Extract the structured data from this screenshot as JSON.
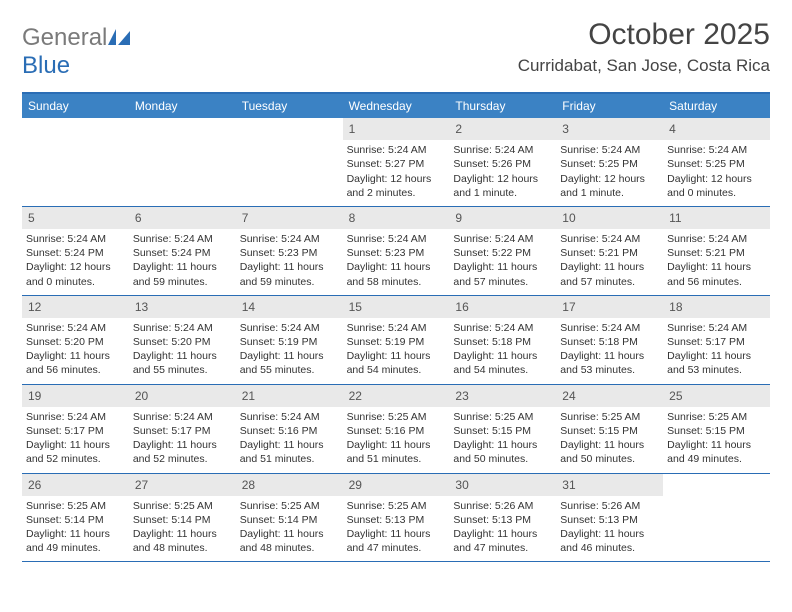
{
  "logo": {
    "text1": "General",
    "text2": "Blue"
  },
  "title": "October 2025",
  "location": "Curridabat, San Jose, Costa Rica",
  "colors": {
    "headerBar": "#3b82c4",
    "borderBlue": "#2a6db5",
    "dayNumBg": "#e9e9e9",
    "text": "#333333"
  },
  "dayNames": [
    "Sunday",
    "Monday",
    "Tuesday",
    "Wednesday",
    "Thursday",
    "Friday",
    "Saturday"
  ],
  "weeks": [
    [
      null,
      null,
      null,
      {
        "n": "1",
        "sr": "Sunrise: 5:24 AM",
        "ss": "Sunset: 5:27 PM",
        "dl": "Daylight: 12 hours and 2 minutes."
      },
      {
        "n": "2",
        "sr": "Sunrise: 5:24 AM",
        "ss": "Sunset: 5:26 PM",
        "dl": "Daylight: 12 hours and 1 minute."
      },
      {
        "n": "3",
        "sr": "Sunrise: 5:24 AM",
        "ss": "Sunset: 5:25 PM",
        "dl": "Daylight: 12 hours and 1 minute."
      },
      {
        "n": "4",
        "sr": "Sunrise: 5:24 AM",
        "ss": "Sunset: 5:25 PM",
        "dl": "Daylight: 12 hours and 0 minutes."
      }
    ],
    [
      {
        "n": "5",
        "sr": "Sunrise: 5:24 AM",
        "ss": "Sunset: 5:24 PM",
        "dl": "Daylight: 12 hours and 0 minutes."
      },
      {
        "n": "6",
        "sr": "Sunrise: 5:24 AM",
        "ss": "Sunset: 5:24 PM",
        "dl": "Daylight: 11 hours and 59 minutes."
      },
      {
        "n": "7",
        "sr": "Sunrise: 5:24 AM",
        "ss": "Sunset: 5:23 PM",
        "dl": "Daylight: 11 hours and 59 minutes."
      },
      {
        "n": "8",
        "sr": "Sunrise: 5:24 AM",
        "ss": "Sunset: 5:23 PM",
        "dl": "Daylight: 11 hours and 58 minutes."
      },
      {
        "n": "9",
        "sr": "Sunrise: 5:24 AM",
        "ss": "Sunset: 5:22 PM",
        "dl": "Daylight: 11 hours and 57 minutes."
      },
      {
        "n": "10",
        "sr": "Sunrise: 5:24 AM",
        "ss": "Sunset: 5:21 PM",
        "dl": "Daylight: 11 hours and 57 minutes."
      },
      {
        "n": "11",
        "sr": "Sunrise: 5:24 AM",
        "ss": "Sunset: 5:21 PM",
        "dl": "Daylight: 11 hours and 56 minutes."
      }
    ],
    [
      {
        "n": "12",
        "sr": "Sunrise: 5:24 AM",
        "ss": "Sunset: 5:20 PM",
        "dl": "Daylight: 11 hours and 56 minutes."
      },
      {
        "n": "13",
        "sr": "Sunrise: 5:24 AM",
        "ss": "Sunset: 5:20 PM",
        "dl": "Daylight: 11 hours and 55 minutes."
      },
      {
        "n": "14",
        "sr": "Sunrise: 5:24 AM",
        "ss": "Sunset: 5:19 PM",
        "dl": "Daylight: 11 hours and 55 minutes."
      },
      {
        "n": "15",
        "sr": "Sunrise: 5:24 AM",
        "ss": "Sunset: 5:19 PM",
        "dl": "Daylight: 11 hours and 54 minutes."
      },
      {
        "n": "16",
        "sr": "Sunrise: 5:24 AM",
        "ss": "Sunset: 5:18 PM",
        "dl": "Daylight: 11 hours and 54 minutes."
      },
      {
        "n": "17",
        "sr": "Sunrise: 5:24 AM",
        "ss": "Sunset: 5:18 PM",
        "dl": "Daylight: 11 hours and 53 minutes."
      },
      {
        "n": "18",
        "sr": "Sunrise: 5:24 AM",
        "ss": "Sunset: 5:17 PM",
        "dl": "Daylight: 11 hours and 53 minutes."
      }
    ],
    [
      {
        "n": "19",
        "sr": "Sunrise: 5:24 AM",
        "ss": "Sunset: 5:17 PM",
        "dl": "Daylight: 11 hours and 52 minutes."
      },
      {
        "n": "20",
        "sr": "Sunrise: 5:24 AM",
        "ss": "Sunset: 5:17 PM",
        "dl": "Daylight: 11 hours and 52 minutes."
      },
      {
        "n": "21",
        "sr": "Sunrise: 5:24 AM",
        "ss": "Sunset: 5:16 PM",
        "dl": "Daylight: 11 hours and 51 minutes."
      },
      {
        "n": "22",
        "sr": "Sunrise: 5:25 AM",
        "ss": "Sunset: 5:16 PM",
        "dl": "Daylight: 11 hours and 51 minutes."
      },
      {
        "n": "23",
        "sr": "Sunrise: 5:25 AM",
        "ss": "Sunset: 5:15 PM",
        "dl": "Daylight: 11 hours and 50 minutes."
      },
      {
        "n": "24",
        "sr": "Sunrise: 5:25 AM",
        "ss": "Sunset: 5:15 PM",
        "dl": "Daylight: 11 hours and 50 minutes."
      },
      {
        "n": "25",
        "sr": "Sunrise: 5:25 AM",
        "ss": "Sunset: 5:15 PM",
        "dl": "Daylight: 11 hours and 49 minutes."
      }
    ],
    [
      {
        "n": "26",
        "sr": "Sunrise: 5:25 AM",
        "ss": "Sunset: 5:14 PM",
        "dl": "Daylight: 11 hours and 49 minutes."
      },
      {
        "n": "27",
        "sr": "Sunrise: 5:25 AM",
        "ss": "Sunset: 5:14 PM",
        "dl": "Daylight: 11 hours and 48 minutes."
      },
      {
        "n": "28",
        "sr": "Sunrise: 5:25 AM",
        "ss": "Sunset: 5:14 PM",
        "dl": "Daylight: 11 hours and 48 minutes."
      },
      {
        "n": "29",
        "sr": "Sunrise: 5:25 AM",
        "ss": "Sunset: 5:13 PM",
        "dl": "Daylight: 11 hours and 47 minutes."
      },
      {
        "n": "30",
        "sr": "Sunrise: 5:26 AM",
        "ss": "Sunset: 5:13 PM",
        "dl": "Daylight: 11 hours and 47 minutes."
      },
      {
        "n": "31",
        "sr": "Sunrise: 5:26 AM",
        "ss": "Sunset: 5:13 PM",
        "dl": "Daylight: 11 hours and 46 minutes."
      },
      null
    ]
  ]
}
